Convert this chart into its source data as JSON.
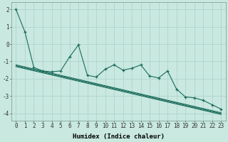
{
  "title": "",
  "xlabel": "Humidex (Indice chaleur)",
  "ylabel": "",
  "background_color": "#c8e8e0",
  "grid_color": "#afd4cc",
  "line_color": "#1a6b5a",
  "x": [
    0,
    1,
    2,
    3,
    4,
    5,
    6,
    7,
    8,
    9,
    10,
    11,
    12,
    13,
    14,
    15,
    16,
    17,
    18,
    19,
    20,
    21,
    22,
    23
  ],
  "y_scatter": [
    2.0,
    0.7,
    -1.35,
    -1.55,
    -1.6,
    -1.55,
    -0.75,
    -0.05,
    -1.8,
    -1.9,
    -1.45,
    -1.2,
    -1.5,
    -1.4,
    -1.2,
    -1.85,
    -1.95,
    -1.55,
    -2.6,
    -3.05,
    -3.1,
    -3.25,
    -3.5,
    -3.75
  ],
  "y_trend1": [
    -1.2,
    -1.32,
    -1.44,
    -1.56,
    -1.68,
    -1.8,
    -1.92,
    -2.04,
    -2.16,
    -2.28,
    -2.4,
    -2.52,
    -2.64,
    -2.76,
    -2.88,
    -3.0,
    -3.12,
    -3.24,
    -3.36,
    -3.48,
    -3.6,
    -3.72,
    -3.84,
    -3.96
  ],
  "y_trend2": [
    -1.3,
    -1.42,
    -1.54,
    -1.66,
    -1.78,
    -1.9,
    -2.02,
    -2.14,
    -2.26,
    -2.38,
    -2.5,
    -2.62,
    -2.74,
    -2.86,
    -2.98,
    -3.1,
    -3.22,
    -3.34,
    -3.46,
    -3.58,
    -3.7,
    -3.82,
    -3.94,
    -4.06
  ],
  "y_trend3": [
    -1.25,
    -1.37,
    -1.49,
    -1.61,
    -1.73,
    -1.85,
    -1.97,
    -2.09,
    -2.21,
    -2.33,
    -2.45,
    -2.57,
    -2.69,
    -2.81,
    -2.93,
    -3.05,
    -3.17,
    -3.29,
    -3.41,
    -3.53,
    -3.65,
    -3.77,
    -3.89,
    -4.01
  ],
  "ylim": [
    -4.4,
    2.4
  ],
  "yticks": [
    2,
    1,
    0,
    -1,
    -2,
    -3,
    -4
  ],
  "xticks": [
    0,
    1,
    2,
    3,
    4,
    5,
    6,
    7,
    8,
    9,
    10,
    11,
    12,
    13,
    14,
    15,
    16,
    17,
    18,
    19,
    20,
    21,
    22,
    23
  ],
  "xlabel_fontsize": 6.5,
  "tick_fontsize": 5.5
}
